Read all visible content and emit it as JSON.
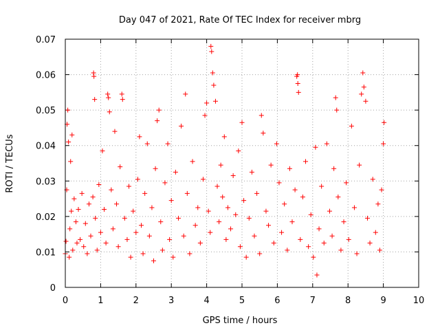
{
  "chart_data": {
    "type": "scatter",
    "title": "Day 047 of 2021, Rate Of TEC Index for receiver mbrg",
    "xlabel": "GPS time / hours",
    "ylabel": "ROTI / TECUs",
    "xlim": [
      0,
      10
    ],
    "ylim": [
      0,
      0.07
    ],
    "x_ticks": [
      0,
      1,
      2,
      3,
      4,
      5,
      6,
      7,
      8,
      9,
      10
    ],
    "x_tick_labels": [
      "0",
      "1",
      "2",
      "3",
      "4",
      "5",
      "6",
      "7",
      "8",
      "9",
      "10"
    ],
    "y_ticks": [
      0,
      0.01,
      0.02,
      0.03,
      0.04,
      0.05,
      0.06,
      0.07
    ],
    "y_tick_labels": [
      "0",
      "0.01",
      "0.02",
      "0.03",
      "0.04",
      "0.05",
      "0.06",
      "0.07"
    ],
    "grid": true,
    "marker": "+",
    "color": "#ff0000",
    "series": [
      {
        "name": "ROTI",
        "points": [
          [
            0.0,
            0.0095
          ],
          [
            0.02,
            0.013
          ],
          [
            0.04,
            0.0275
          ],
          [
            0.05,
            0.046
          ],
          [
            0.07,
            0.05
          ],
          [
            0.09,
            0.041
          ],
          [
            0.11,
            0.0085
          ],
          [
            0.13,
            0.0165
          ],
          [
            0.15,
            0.0355
          ],
          [
            0.17,
            0.0215
          ],
          [
            0.19,
            0.043
          ],
          [
            0.21,
            0.0105
          ],
          [
            0.25,
            0.025
          ],
          [
            0.3,
            0.0185
          ],
          [
            0.33,
            0.0125
          ],
          [
            0.37,
            0.022
          ],
          [
            0.42,
            0.0135
          ],
          [
            0.47,
            0.0265
          ],
          [
            0.52,
            0.0115
          ],
          [
            0.57,
            0.018
          ],
          [
            0.62,
            0.0095
          ],
          [
            0.67,
            0.0235
          ],
          [
            0.72,
            0.0145
          ],
          [
            0.78,
            0.0255
          ],
          [
            0.8,
            0.0605
          ],
          [
            0.81,
            0.0595
          ],
          [
            0.83,
            0.053
          ],
          [
            0.85,
            0.0195
          ],
          [
            0.9,
            0.0105
          ],
          [
            0.95,
            0.029
          ],
          [
            1.0,
            0.0155
          ],
          [
            1.05,
            0.0385
          ],
          [
            1.1,
            0.022
          ],
          [
            1.15,
            0.0125
          ],
          [
            1.2,
            0.0545
          ],
          [
            1.22,
            0.0535
          ],
          [
            1.25,
            0.0495
          ],
          [
            1.3,
            0.0275
          ],
          [
            1.35,
            0.0165
          ],
          [
            1.4,
            0.044
          ],
          [
            1.45,
            0.0235
          ],
          [
            1.5,
            0.0115
          ],
          [
            1.55,
            0.034
          ],
          [
            1.6,
            0.0545
          ],
          [
            1.62,
            0.053
          ],
          [
            1.68,
            0.0195
          ],
          [
            1.75,
            0.0135
          ],
          [
            1.8,
            0.0285
          ],
          [
            1.85,
            0.0085
          ],
          [
            1.92,
            0.0215
          ],
          [
            2.0,
            0.0155
          ],
          [
            2.05,
            0.0305
          ],
          [
            2.1,
            0.0425
          ],
          [
            2.15,
            0.0175
          ],
          [
            2.2,
            0.0095
          ],
          [
            2.25,
            0.0265
          ],
          [
            2.32,
            0.0405
          ],
          [
            2.38,
            0.0145
          ],
          [
            2.45,
            0.0225
          ],
          [
            2.5,
            0.0075
          ],
          [
            2.55,
            0.0335
          ],
          [
            2.6,
            0.047
          ],
          [
            2.65,
            0.05
          ],
          [
            2.7,
            0.0185
          ],
          [
            2.75,
            0.0105
          ],
          [
            2.82,
            0.0295
          ],
          [
            2.9,
            0.0405
          ],
          [
            2.95,
            0.0135
          ],
          [
            3.0,
            0.0245
          ],
          [
            3.05,
            0.0085
          ],
          [
            3.12,
            0.0325
          ],
          [
            3.2,
            0.0195
          ],
          [
            3.28,
            0.0455
          ],
          [
            3.35,
            0.0145
          ],
          [
            3.4,
            0.0545
          ],
          [
            3.45,
            0.0265
          ],
          [
            3.52,
            0.0095
          ],
          [
            3.6,
            0.0355
          ],
          [
            3.68,
            0.0175
          ],
          [
            3.75,
            0.0225
          ],
          [
            3.82,
            0.0125
          ],
          [
            3.9,
            0.0305
          ],
          [
            3.95,
            0.0485
          ],
          [
            4.0,
            0.052
          ],
          [
            4.05,
            0.0215
          ],
          [
            4.1,
            0.0155
          ],
          [
            4.12,
            0.068
          ],
          [
            4.14,
            0.0665
          ],
          [
            4.17,
            0.0605
          ],
          [
            4.2,
            0.057
          ],
          [
            4.25,
            0.0525
          ],
          [
            4.3,
            0.0285
          ],
          [
            4.35,
            0.0185
          ],
          [
            4.4,
            0.0345
          ],
          [
            4.45,
            0.0255
          ],
          [
            4.5,
            0.0425
          ],
          [
            4.55,
            0.0135
          ],
          [
            4.6,
            0.0225
          ],
          [
            4.68,
            0.0165
          ],
          [
            4.75,
            0.0315
          ],
          [
            4.82,
            0.0205
          ],
          [
            4.9,
            0.0385
          ],
          [
            4.95,
            0.0115
          ],
          [
            5.0,
            0.0465
          ],
          [
            5.05,
            0.0245
          ],
          [
            5.12,
            0.0085
          ],
          [
            5.2,
            0.0195
          ],
          [
            5.28,
            0.0325
          ],
          [
            5.35,
            0.0145
          ],
          [
            5.42,
            0.0265
          ],
          [
            5.5,
            0.0095
          ],
          [
            5.55,
            0.0485
          ],
          [
            5.6,
            0.0435
          ],
          [
            5.68,
            0.0215
          ],
          [
            5.75,
            0.0175
          ],
          [
            5.82,
            0.0345
          ],
          [
            5.9,
            0.0125
          ],
          [
            5.98,
            0.0405
          ],
          [
            6.05,
            0.0295
          ],
          [
            6.12,
            0.0155
          ],
          [
            6.2,
            0.0235
          ],
          [
            6.28,
            0.0105
          ],
          [
            6.35,
            0.0335
          ],
          [
            6.42,
            0.0185
          ],
          [
            6.5,
            0.0275
          ],
          [
            6.55,
            0.0595
          ],
          [
            6.57,
            0.06
          ],
          [
            6.58,
            0.0575
          ],
          [
            6.6,
            0.055
          ],
          [
            6.65,
            0.0135
          ],
          [
            6.72,
            0.0255
          ],
          [
            6.8,
            0.0355
          ],
          [
            6.88,
            0.0115
          ],
          [
            6.95,
            0.0205
          ],
          [
            7.02,
            0.0085
          ],
          [
            7.08,
            0.0395
          ],
          [
            7.12,
            0.0035
          ],
          [
            7.18,
            0.0165
          ],
          [
            7.25,
            0.0285
          ],
          [
            7.32,
            0.0125
          ],
          [
            7.4,
            0.0405
          ],
          [
            7.48,
            0.0215
          ],
          [
            7.55,
            0.0145
          ],
          [
            7.6,
            0.0335
          ],
          [
            7.65,
            0.0535
          ],
          [
            7.68,
            0.05
          ],
          [
            7.72,
            0.0255
          ],
          [
            7.8,
            0.0105
          ],
          [
            7.88,
            0.0185
          ],
          [
            7.95,
            0.0295
          ],
          [
            8.02,
            0.0135
          ],
          [
            8.1,
            0.0455
          ],
          [
            8.18,
            0.0225
          ],
          [
            8.25,
            0.0095
          ],
          [
            8.32,
            0.0345
          ],
          [
            8.38,
            0.0545
          ],
          [
            8.42,
            0.0605
          ],
          [
            8.45,
            0.0565
          ],
          [
            8.5,
            0.0525
          ],
          [
            8.55,
            0.0195
          ],
          [
            8.62,
            0.0125
          ],
          [
            8.7,
            0.0305
          ],
          [
            8.78,
            0.0155
          ],
          [
            8.85,
            0.0235
          ],
          [
            8.9,
            0.0105
          ],
          [
            8.95,
            0.0275
          ],
          [
            9.0,
            0.0405
          ],
          [
            9.02,
            0.0465
          ]
        ]
      }
    ]
  }
}
